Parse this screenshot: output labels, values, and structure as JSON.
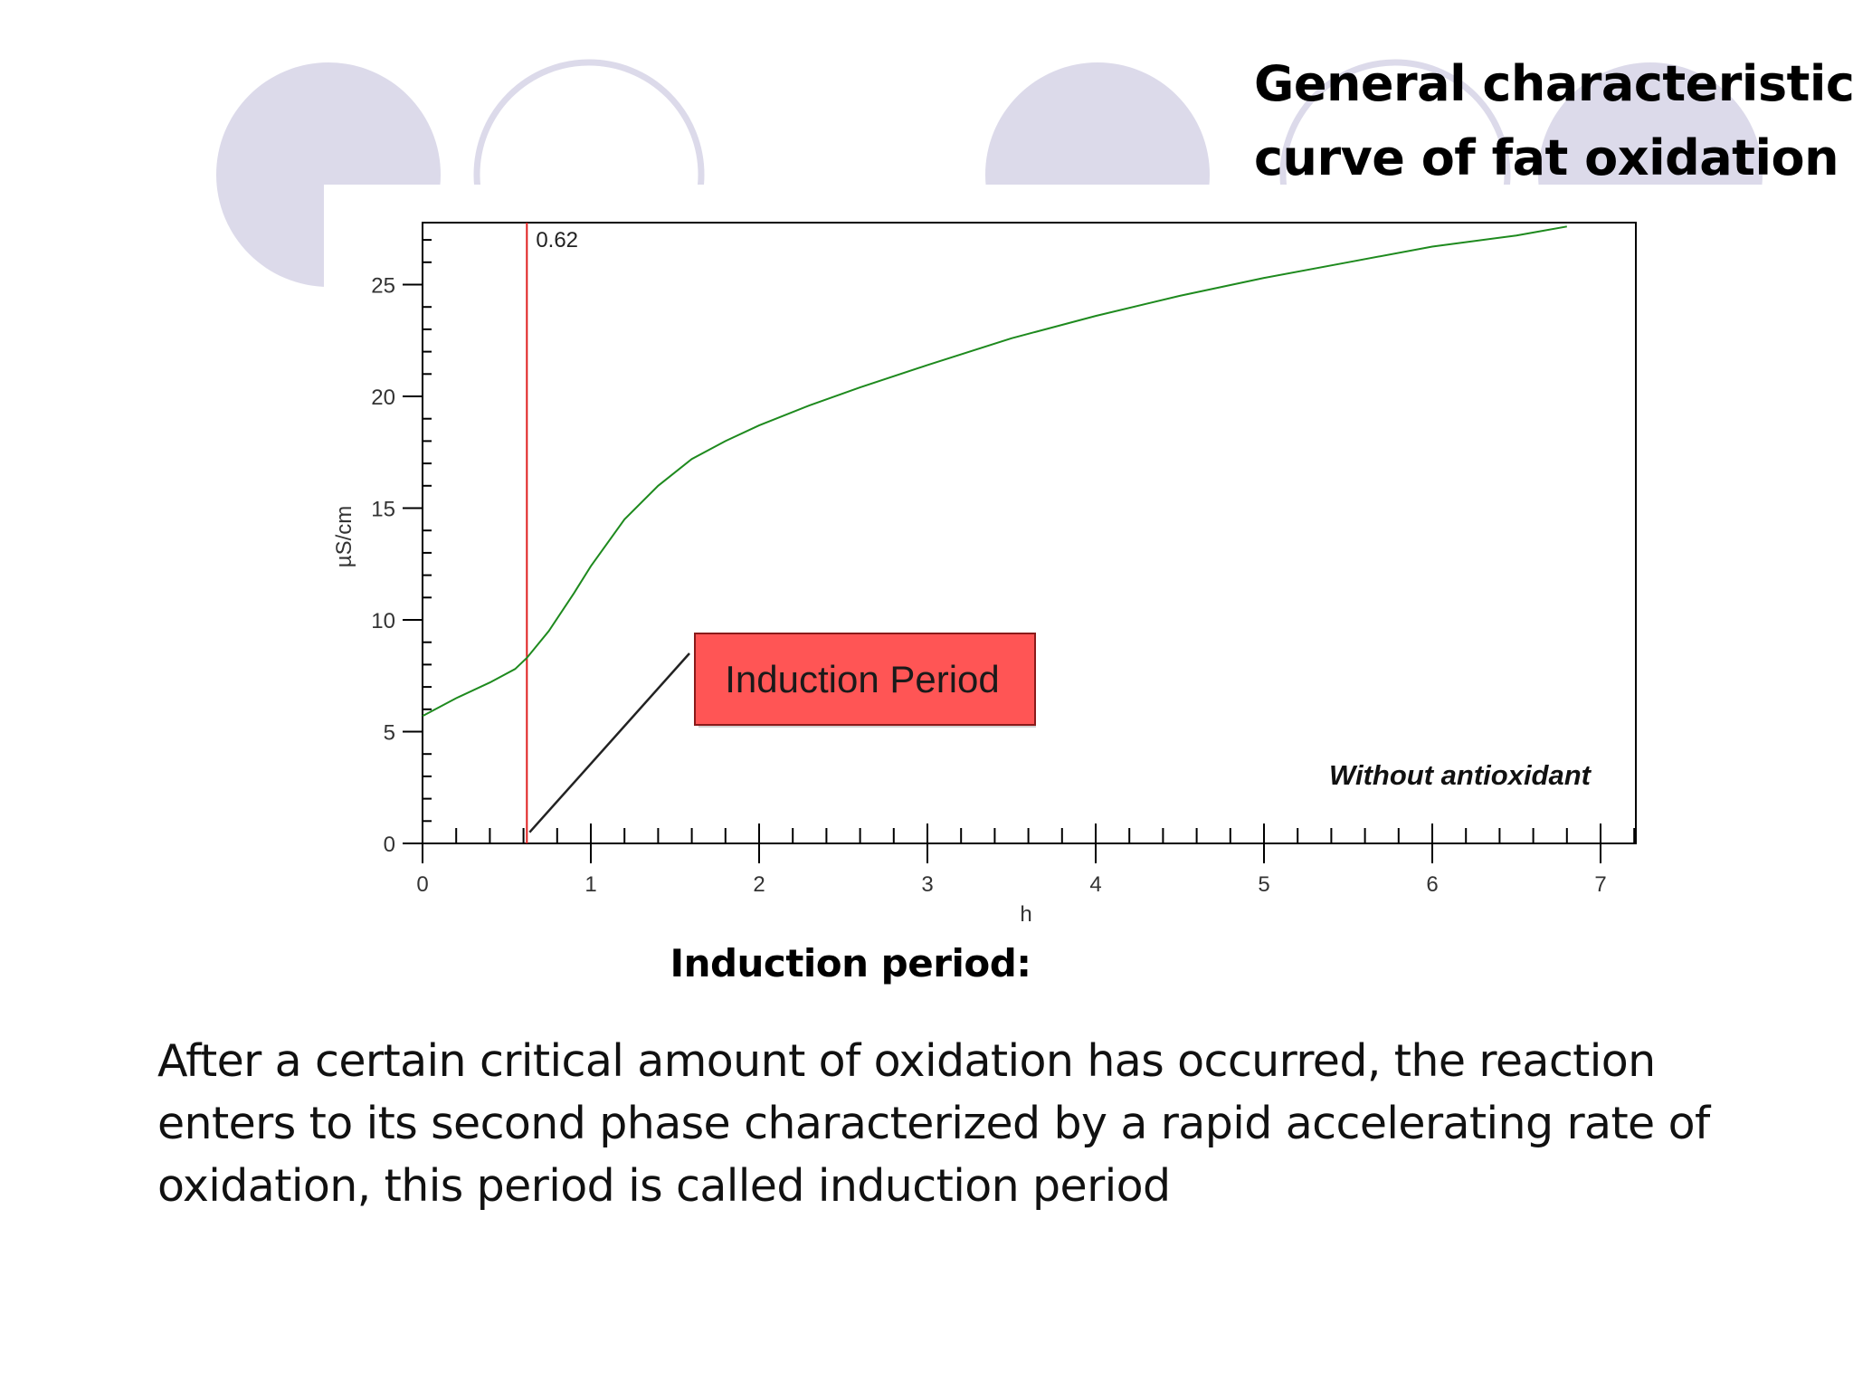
{
  "slide": {
    "title_lines": [
      "General characteristics",
      "curve of fat oxidation"
    ],
    "subheading": "Induction period:",
    "body_lines": [
      "After a certain critical amount of oxidation  has occurred, the reaction",
      "enters to its second phase characterized by a rapid accelerating rate of",
      "oxidation, this period is called induction period"
    ],
    "decor_color": "#dcdaea"
  },
  "chart_data": {
    "type": "line",
    "xlabel": "h",
    "ylabel": "µS/cm",
    "xlim": [
      0,
      7.2
    ],
    "ylim": [
      0,
      27.8
    ],
    "xticks": [
      0,
      1,
      2,
      3,
      4,
      5,
      6,
      7
    ],
    "yticks": [
      0,
      5,
      10,
      15,
      20,
      25
    ],
    "grid": false,
    "series": [
      {
        "color": "#1e8a1e",
        "x": [
          0,
          0.2,
          0.4,
          0.55,
          0.62,
          0.75,
          0.9,
          1.0,
          1.2,
          1.4,
          1.6,
          1.8,
          2.0,
          2.3,
          2.6,
          3.0,
          3.5,
          4.0,
          4.5,
          5.0,
          5.5,
          6.0,
          6.5,
          6.8
        ],
        "y": [
          5.7,
          6.5,
          7.2,
          7.8,
          8.3,
          9.5,
          11.2,
          12.4,
          14.5,
          16.0,
          17.2,
          18.0,
          18.7,
          19.6,
          20.4,
          21.4,
          22.6,
          23.6,
          24.5,
          25.3,
          26.0,
          26.7,
          27.2,
          27.6
        ]
      }
    ],
    "vline": {
      "x": 0.62,
      "label": "0.62",
      "color": "#e02020"
    },
    "annotation": {
      "text": "Induction Period",
      "box_color": "#ff5555",
      "arrow_to_x": 0.62,
      "arrow_to_y": 0.5
    },
    "corner_text": "Without antioxidant"
  }
}
